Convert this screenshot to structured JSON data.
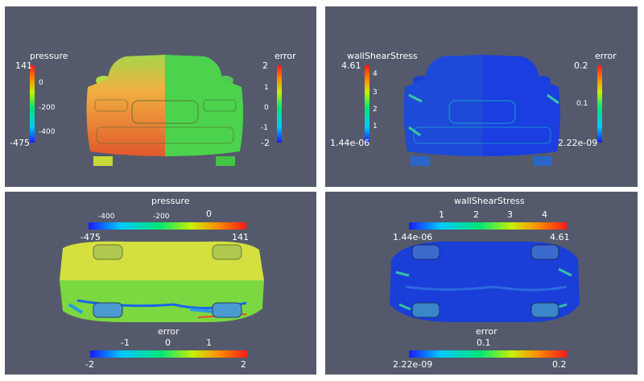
{
  "panels": [
    {
      "id": "front-pressure-error",
      "bars": [
        {
          "title": "pressure",
          "max": "141",
          "ticks": [
            "0",
            "-200",
            "-400"
          ],
          "min": "-475"
        },
        {
          "title": "error",
          "max": "2",
          "ticks": [
            "1",
            "0",
            "-1"
          ],
          "min": "-2"
        }
      ]
    },
    {
      "id": "front-wallshear-error",
      "bars": [
        {
          "title": "wallShearStress",
          "max": "4.61",
          "ticks": [
            "4",
            "3",
            "2",
            "1"
          ],
          "min": "1.44e-06"
        },
        {
          "title": "error",
          "max": "0.2",
          "ticks": [
            "0.1"
          ],
          "min": "2.22e-09"
        }
      ]
    },
    {
      "id": "bottom-pressure-error",
      "bars": [
        {
          "title": "pressure",
          "min": "-475",
          "ticks": [
            "-400",
            "-200",
            "0"
          ],
          "max": "141"
        },
        {
          "title": "error",
          "min": "-2",
          "ticks": [
            "-1",
            "0",
            "1"
          ],
          "max": "2"
        }
      ]
    },
    {
      "id": "bottom-wallshear-error",
      "bars": [
        {
          "title": "wallShearStress",
          "min": "1.44e-06",
          "ticks": [
            "1",
            "2",
            "3",
            "4"
          ],
          "max": "4.61"
        },
        {
          "title": "error",
          "min": "2.22e-09",
          "ticks": [
            "0.1"
          ],
          "max": "0.2"
        }
      ]
    }
  ],
  "colors": {
    "background": "#545a6b",
    "colormap": [
      "#1a1aff",
      "#00c8ff",
      "#00e676",
      "#c8f000",
      "#ff8a00",
      "#ff1a1a"
    ]
  }
}
